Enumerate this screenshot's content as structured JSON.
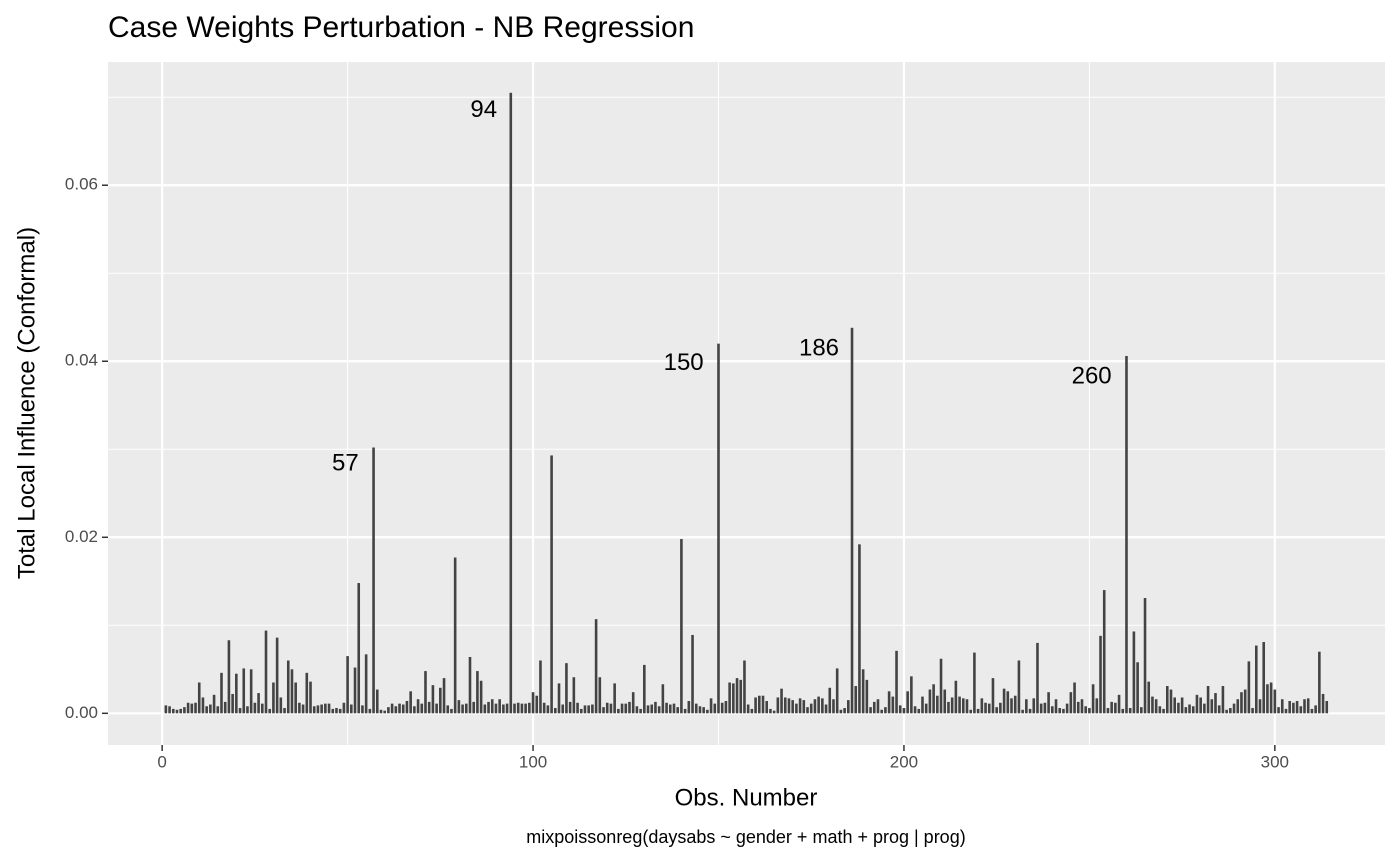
{
  "chart_data": {
    "type": "bar",
    "title": "Case Weights Perturbation - NB Regression",
    "xlabel": "Obs. Number",
    "ylabel": "Total Local Influence (Conformal)",
    "caption": "mixpoissonreg(daysabs ~ gender + math + prog | prog)",
    "color": "#434343",
    "grid": true,
    "xlim": [
      -14.6,
      329.7
    ],
    "ylim": [
      -0.0036,
      0.074
    ],
    "xticks": [
      0,
      100,
      200,
      300
    ],
    "yticks": [
      {
        "value": 0,
        "label": "0.00"
      },
      {
        "value": 0.02,
        "label": "0.02"
      },
      {
        "value": 0.04,
        "label": "0.04"
      },
      {
        "value": 0.06,
        "label": "0.06"
      }
    ],
    "minor_xticks": [
      50,
      150,
      250
    ],
    "minor_yticks": [
      0.01,
      0.03,
      0.05,
      0.07
    ],
    "annotations": [
      {
        "text": "57",
        "x": 53,
        "y": 0.0283
      },
      {
        "text": "94",
        "x": 90.3,
        "y": 0.0685
      },
      {
        "text": "150",
        "x": 146,
        "y": 0.0397
      },
      {
        "text": "186",
        "x": 182.5,
        "y": 0.0414
      },
      {
        "text": "260",
        "x": 256,
        "y": 0.0382
      }
    ],
    "x": [
      1,
      2,
      3,
      4,
      5,
      6,
      7,
      8,
      9,
      10,
      11,
      12,
      13,
      14,
      15,
      16,
      17,
      18,
      19,
      20,
      21,
      22,
      23,
      24,
      25,
      26,
      27,
      28,
      29,
      30,
      31,
      32,
      33,
      34,
      35,
      36,
      37,
      38,
      39,
      40,
      41,
      42,
      43,
      44,
      45,
      46,
      47,
      48,
      49,
      50,
      51,
      52,
      53,
      54,
      55,
      56,
      57,
      58,
      59,
      60,
      61,
      62,
      63,
      64,
      65,
      66,
      67,
      68,
      69,
      70,
      71,
      72,
      73,
      74,
      75,
      76,
      77,
      78,
      79,
      80,
      81,
      82,
      83,
      84,
      85,
      86,
      87,
      88,
      89,
      90,
      91,
      92,
      93,
      94,
      95,
      96,
      97,
      98,
      99,
      100,
      101,
      102,
      103,
      104,
      105,
      106,
      107,
      108,
      109,
      110,
      111,
      112,
      113,
      114,
      115,
      116,
      117,
      118,
      119,
      120,
      121,
      122,
      123,
      124,
      125,
      126,
      127,
      128,
      129,
      130,
      131,
      132,
      133,
      134,
      135,
      136,
      137,
      138,
      139,
      140,
      141,
      142,
      143,
      144,
      145,
      146,
      147,
      148,
      149,
      150,
      151,
      152,
      153,
      154,
      155,
      156,
      157,
      158,
      159,
      160,
      161,
      162,
      163,
      164,
      165,
      166,
      167,
      168,
      169,
      170,
      171,
      172,
      173,
      174,
      175,
      176,
      177,
      178,
      179,
      180,
      181,
      182,
      183,
      184,
      185,
      186,
      187,
      188,
      189,
      190,
      191,
      192,
      193,
      194,
      195,
      196,
      197,
      198,
      199,
      200,
      201,
      202,
      203,
      204,
      205,
      206,
      207,
      208,
      209,
      210,
      211,
      212,
      213,
      214,
      215,
      216,
      217,
      218,
      219,
      220,
      221,
      222,
      223,
      224,
      225,
      226,
      227,
      228,
      229,
      230,
      231,
      232,
      233,
      234,
      235,
      236,
      237,
      238,
      239,
      240,
      241,
      242,
      243,
      244,
      245,
      246,
      247,
      248,
      249,
      250,
      251,
      252,
      253,
      254,
      255,
      256,
      257,
      258,
      259,
      260,
      261,
      262,
      263,
      264,
      265,
      266,
      267,
      268,
      269,
      270,
      271,
      272,
      273,
      274,
      275,
      276,
      277,
      278,
      279,
      280,
      281,
      282,
      283,
      284,
      285,
      286,
      287,
      288,
      289,
      290,
      291,
      292,
      293,
      294,
      295,
      296,
      297,
      298,
      299,
      300,
      301,
      302,
      303,
      304,
      305,
      306,
      307,
      308,
      309,
      310,
      311,
      312,
      313,
      314
    ],
    "values": [
      0.0009,
      0.0008,
      0.0005,
      0.0004,
      0.0005,
      0.0007,
      0.0012,
      0.0011,
      0.0012,
      0.0035,
      0.0018,
      0.0008,
      0.001,
      0.0021,
      0.0008,
      0.0046,
      0.0013,
      0.0083,
      0.0022,
      0.0045,
      0.0006,
      0.0051,
      0.0008,
      0.005,
      0.0012,
      0.0023,
      0.0011,
      0.0094,
      0.0005,
      0.0035,
      0.0086,
      0.0018,
      0.0006,
      0.006,
      0.005,
      0.0035,
      0.0012,
      0.001,
      0.0046,
      0.0036,
      0.0008,
      0.0009,
      0.001,
      0.0011,
      0.0011,
      0.0005,
      0.0006,
      0.0005,
      0.0012,
      0.0065,
      0.001,
      0.0052,
      0.0148,
      0.0009,
      0.0067,
      0.0005,
      0.0302,
      0.0027,
      0.0004,
      0.0003,
      0.0007,
      0.0011,
      0.0008,
      0.0011,
      0.001,
      0.0014,
      0.0025,
      0.0008,
      0.0016,
      0.0011,
      0.0048,
      0.0013,
      0.0032,
      0.0011,
      0.0029,
      0.004,
      0.0009,
      0.0005,
      0.0177,
      0.0015,
      0.001,
      0.0011,
      0.0064,
      0.0013,
      0.0048,
      0.0037,
      0.001,
      0.0013,
      0.0016,
      0.0011,
      0.0016,
      0.001,
      0.0011,
      0.0705,
      0.0011,
      0.0012,
      0.0011,
      0.0011,
      0.0012,
      0.0024,
      0.002,
      0.006,
      0.0012,
      0.0009,
      0.0293,
      0.0006,
      0.0034,
      0.001,
      0.0057,
      0.0013,
      0.0041,
      0.0012,
      0.0005,
      0.0009,
      0.0009,
      0.001,
      0.0107,
      0.0041,
      0.0007,
      0.0012,
      0.0011,
      0.0034,
      0.0005,
      0.0011,
      0.0011,
      0.0013,
      0.0024,
      0.0008,
      0.0005,
      0.0055,
      0.0009,
      0.001,
      0.0013,
      0.0008,
      0.0033,
      0.0012,
      0.001,
      0.0011,
      0.0007,
      0.0198,
      0.0005,
      0.0014,
      0.0089,
      0.0011,
      0.0008,
      0.0007,
      0.0004,
      0.0017,
      0.0011,
      0.042,
      0.0012,
      0.0014,
      0.0035,
      0.0034,
      0.004,
      0.0038,
      0.006,
      0.001,
      0.0005,
      0.0018,
      0.002,
      0.002,
      0.0014,
      0.0005,
      0.0003,
      0.0018,
      0.0028,
      0.0018,
      0.0017,
      0.0015,
      0.0011,
      0.0017,
      0.0015,
      0.0007,
      0.0011,
      0.0016,
      0.0019,
      0.0017,
      0.001,
      0.0029,
      0.0016,
      0.0051,
      0.0004,
      0.0006,
      0.0015,
      0.0438,
      0.0031,
      0.0192,
      0.005,
      0.0038,
      0.0007,
      0.0013,
      0.0016,
      0.0004,
      0.0007,
      0.0025,
      0.0019,
      0.0071,
      0.0009,
      0.0006,
      0.0025,
      0.0042,
      0.0008,
      0.0005,
      0.0019,
      0.0011,
      0.0027,
      0.0033,
      0.002,
      0.0062,
      0.0027,
      0.0013,
      0.0018,
      0.0037,
      0.0019,
      0.0017,
      0.0016,
      0.0004,
      0.0069,
      0.0005,
      0.0017,
      0.0012,
      0.0011,
      0.004,
      0.0007,
      0.0012,
      0.0028,
      0.0025,
      0.0017,
      0.002,
      0.006,
      0.0004,
      0.0016,
      0.0005,
      0.0017,
      0.008,
      0.0011,
      0.0012,
      0.0024,
      0.0008,
      0.0016,
      0.0006,
      0.0005,
      0.0011,
      0.0024,
      0.0035,
      0.0013,
      0.0016,
      0.0008,
      0.0006,
      0.0033,
      0.0017,
      0.0088,
      0.014,
      0.0006,
      0.0013,
      0.0012,
      0.0021,
      0.0005,
      0.0406,
      0.0006,
      0.0093,
      0.0058,
      0.0007,
      0.0131,
      0.0036,
      0.0019,
      0.0016,
      0.0008,
      0.0005,
      0.0031,
      0.0027,
      0.0018,
      0.0012,
      0.0018,
      0.0007,
      0.001,
      0.0008,
      0.0021,
      0.0018,
      0.0011,
      0.0031,
      0.0016,
      0.0023,
      0.0009,
      0.0031,
      0.0004,
      0.0006,
      0.0011,
      0.0016,
      0.0024,
      0.0027,
      0.0059,
      0.0006,
      0.0077,
      0.0016,
      0.0081,
      0.0033,
      0.0035,
      0.0027,
      0.0007,
      0.0016,
      0.0005,
      0.0014,
      0.0012,
      0.0014,
      0.0008,
      0.0016,
      0.0017,
      0.0005,
      0.0009,
      0.007,
      0.0022,
      0.0014
    ]
  }
}
